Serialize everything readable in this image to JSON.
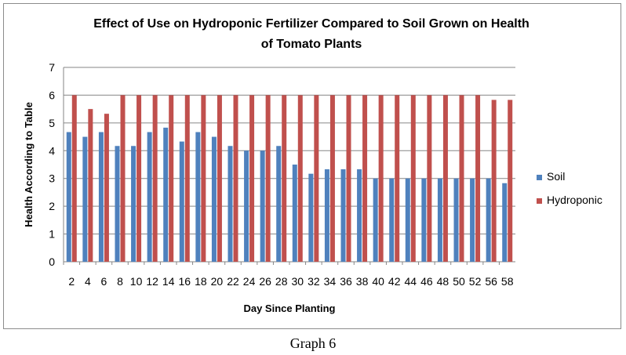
{
  "caption": "Graph 6",
  "chart_data": {
    "type": "bar",
    "title_lines": [
      "Effect of Use on Hydroponic Fertilizer Compared to Soil Grown on Health",
      "of Tomato Plants"
    ],
    "xlabel": "Day Since Planting",
    "ylabel": "Health According to Table",
    "ylim": [
      0,
      7
    ],
    "yticks": [
      0,
      1,
      2,
      3,
      4,
      5,
      6,
      7
    ],
    "grid": true,
    "legend_position": "right",
    "categories": [
      "2",
      "4",
      "6",
      "8",
      "10",
      "12",
      "14",
      "16",
      "18",
      "20",
      "22",
      "24",
      "26",
      "28",
      "30",
      "32",
      "34",
      "36",
      "38",
      "40",
      "42",
      "44",
      "46",
      "48",
      "50",
      "52",
      "56",
      "58"
    ],
    "series": [
      {
        "name": "Soil",
        "color": "#4f81bd",
        "values": [
          4.67,
          4.5,
          4.67,
          4.17,
          4.17,
          4.67,
          4.83,
          4.33,
          4.67,
          4.5,
          4.17,
          4.0,
          4.0,
          4.17,
          3.5,
          3.17,
          3.33,
          3.33,
          3.33,
          3.0,
          3.0,
          3.0,
          3.0,
          3.0,
          3.0,
          3.0,
          3.0,
          2.83
        ]
      },
      {
        "name": "Hydroponic",
        "color": "#c0504d",
        "values": [
          6.0,
          5.5,
          5.33,
          6.0,
          6.0,
          6.0,
          6.0,
          6.0,
          6.0,
          6.0,
          6.0,
          6.0,
          6.0,
          6.0,
          6.0,
          6.0,
          6.0,
          6.0,
          6.0,
          6.0,
          6.0,
          6.0,
          6.0,
          6.0,
          6.0,
          6.0,
          5.83,
          5.83
        ]
      }
    ]
  }
}
